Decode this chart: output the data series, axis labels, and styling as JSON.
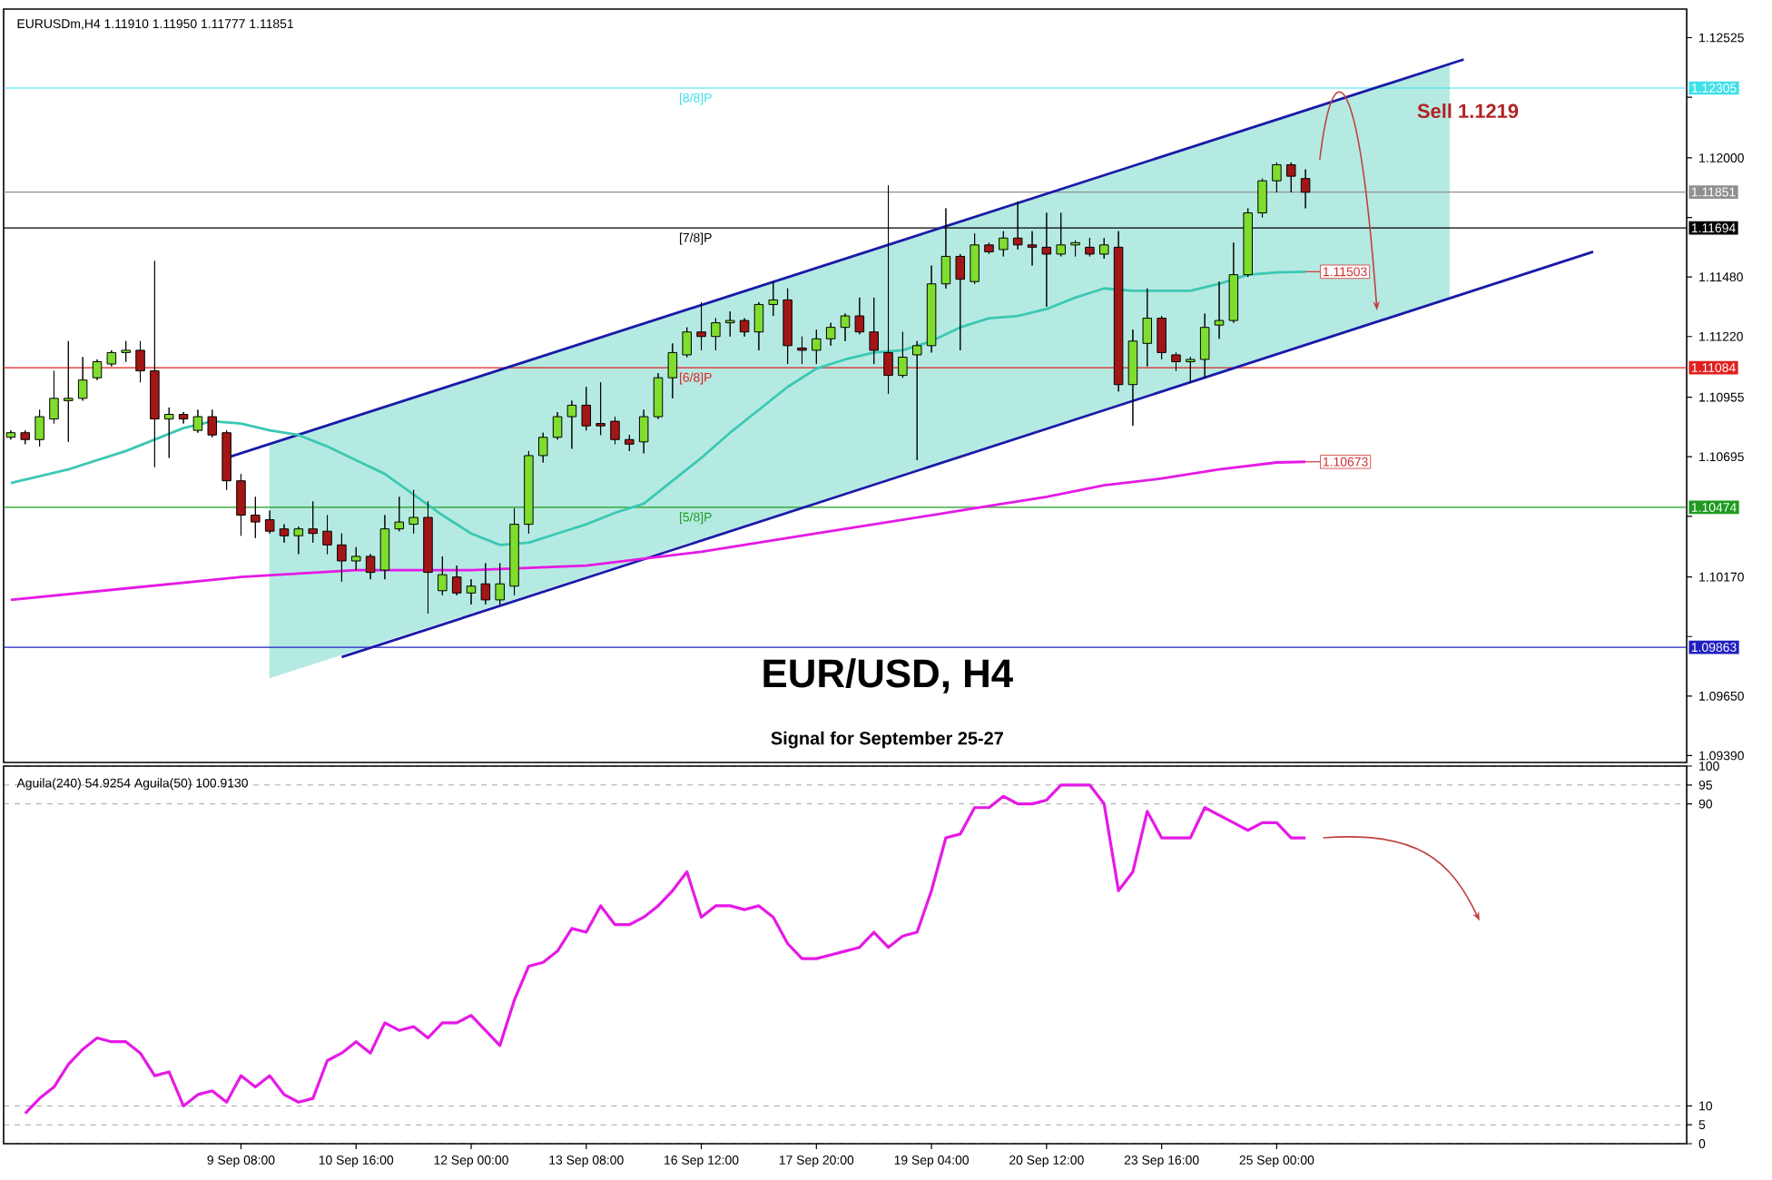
{
  "chart_data": [
    {
      "type": "candlestick",
      "title": "EUR/USD, H4",
      "subtitle": "Signal for September 25-27",
      "annotations": [
        "EURUSDm,H4 1.11910 1.11950 1.11777 1.11851",
        "Sell 1.1219",
        {
          "text": "[8/8]P",
          "y": 1.12305
        },
        {
          "text": "[7/8]P",
          "y": 1.11694
        },
        {
          "text": "[6/8]P",
          "y": 1.11084
        },
        {
          "text": "[5/8]P",
          "y": 1.10474
        }
      ],
      "categories": [
        null,
        null,
        null,
        null,
        null,
        null,
        null,
        null,
        null,
        null,
        null,
        null,
        null,
        null,
        null,
        null,
        null,
        null,
        null,
        null,
        null,
        null,
        null,
        null,
        null,
        null,
        null,
        null,
        null,
        null,
        null,
        null,
        null,
        null,
        null,
        null,
        null,
        null,
        null,
        null,
        null,
        null,
        null,
        null,
        null,
        null,
        null,
        null,
        null,
        null,
        null,
        null,
        null,
        null,
        null,
        null,
        null,
        null,
        null,
        null,
        null,
        null,
        null,
        null,
        null,
        null,
        null,
        null,
        null,
        null,
        null,
        null,
        null,
        null,
        null,
        null,
        null,
        null,
        null,
        null,
        null,
        null,
        null,
        null,
        null,
        null,
        null,
        null,
        null,
        null,
        null,
        null,
        null,
        null,
        null,
        null,
        null,
        null,
        null,
        null,
        null,
        null,
        null,
        null,
        null,
        null,
        null,
        null,
        null,
        null,
        null,
        null,
        null,
        null,
        null,
        null,
        null
      ],
      "ohlc": [
        [
          1.1078,
          1.1081,
          1.1077,
          1.108
        ],
        [
          1.108,
          1.1081,
          1.1075,
          1.1077
        ],
        [
          1.1077,
          1.109,
          1.1074,
          1.1087
        ],
        [
          1.1086,
          1.1107,
          1.1084,
          1.1095
        ],
        [
          1.1094,
          1.112,
          1.1076,
          1.1095
        ],
        [
          1.1095,
          1.1113,
          1.1094,
          1.1103
        ],
        [
          1.1104,
          1.1112,
          1.1103,
          1.1111
        ],
        [
          1.111,
          1.1116,
          1.1109,
          1.1115
        ],
        [
          1.1115,
          1.112,
          1.1111,
          1.1116
        ],
        [
          1.1116,
          1.112,
          1.1102,
          1.1107
        ],
        [
          1.1107,
          1.1155,
          1.1065,
          1.1086
        ],
        [
          1.1086,
          1.1091,
          1.1069,
          1.1088
        ],
        [
          1.1088,
          1.1089,
          1.1084,
          1.1086
        ],
        [
          1.1081,
          1.109,
          1.108,
          1.1087
        ],
        [
          1.1087,
          1.109,
          1.1078,
          1.1079
        ],
        [
          1.108,
          1.1081,
          1.1055,
          1.1059
        ],
        [
          1.1059,
          1.1062,
          1.1035,
          1.1044
        ],
        [
          1.1044,
          1.1052,
          1.1034,
          1.1041
        ],
        [
          1.1042,
          1.1046,
          1.1036,
          1.1037
        ],
        [
          1.1038,
          1.104,
          1.1032,
          1.1035
        ],
        [
          1.1035,
          1.1039,
          1.1027,
          1.1038
        ],
        [
          1.1038,
          1.105,
          1.1032,
          1.1036
        ],
        [
          1.1037,
          1.1044,
          1.1027,
          1.1031
        ],
        [
          1.1031,
          1.1036,
          1.1015,
          1.1024
        ],
        [
          1.1024,
          1.103,
          1.102,
          1.1026
        ],
        [
          1.1026,
          1.1027,
          1.1016,
          1.1019
        ],
        [
          1.102,
          1.1044,
          1.1016,
          1.1038
        ],
        [
          1.1038,
          1.1052,
          1.1037,
          1.1041
        ],
        [
          1.104,
          1.1055,
          1.1036,
          1.1043
        ],
        [
          1.1043,
          1.105,
          1.1001,
          1.1019
        ],
        [
          1.1011,
          1.1026,
          1.1009,
          1.1018
        ],
        [
          1.1017,
          1.1022,
          1.1009,
          1.101
        ],
        [
          1.101,
          1.1016,
          1.1005,
          1.1013
        ],
        [
          1.1014,
          1.1023,
          1.1005,
          1.1007
        ],
        [
          1.1007,
          1.1023,
          1.1005,
          1.1014
        ],
        [
          1.1013,
          1.1047,
          1.1009,
          1.104
        ],
        [
          1.104,
          1.1072,
          1.1036,
          1.107
        ],
        [
          1.107,
          1.108,
          1.1067,
          1.1078
        ],
        [
          1.1078,
          1.1089,
          1.1077,
          1.1087
        ],
        [
          1.1087,
          1.1094,
          1.1073,
          1.1092
        ],
        [
          1.1092,
          1.11,
          1.1081,
          1.1083
        ],
        [
          1.1084,
          1.1102,
          1.1079,
          1.1083
        ],
        [
          1.1085,
          1.1087,
          1.1075,
          1.1077
        ],
        [
          1.1077,
          1.1079,
          1.1072,
          1.1075
        ],
        [
          1.1076,
          1.109,
          1.1071,
          1.1087
        ],
        [
          1.1087,
          1.1106,
          1.1086,
          1.1104
        ],
        [
          1.1104,
          1.1119,
          1.1095,
          1.1115
        ],
        [
          1.1114,
          1.1126,
          1.1113,
          1.1124
        ],
        [
          1.1124,
          1.1137,
          1.1116,
          1.1122
        ],
        [
          1.1122,
          1.113,
          1.1116,
          1.1128
        ],
        [
          1.1128,
          1.1133,
          1.1122,
          1.1129
        ],
        [
          1.1129,
          1.113,
          1.1122,
          1.1124
        ],
        [
          1.1124,
          1.1137,
          1.1116,
          1.1136
        ],
        [
          1.1136,
          1.1146,
          1.1131,
          1.1138
        ],
        [
          1.1138,
          1.1143,
          1.111,
          1.1118
        ],
        [
          1.1117,
          1.1122,
          1.111,
          1.1116
        ],
        [
          1.1116,
          1.1125,
          1.111,
          1.1121
        ],
        [
          1.1121,
          1.1128,
          1.1118,
          1.1126
        ],
        [
          1.1126,
          1.1132,
          1.112,
          1.1131
        ],
        [
          1.1131,
          1.1139,
          1.1123,
          1.1124
        ],
        [
          1.1124,
          1.1139,
          1.111,
          1.1116
        ],
        [
          1.1115,
          1.1188,
          1.1097,
          1.1105
        ],
        [
          1.1105,
          1.1124,
          1.1104,
          1.1113
        ],
        [
          1.1114,
          1.112,
          1.1068,
          1.1118
        ],
        [
          1.1118,
          1.1153,
          1.1115,
          1.1145
        ],
        [
          1.1145,
          1.1178,
          1.1143,
          1.1157
        ],
        [
          1.1157,
          1.1158,
          1.1116,
          1.1147
        ],
        [
          1.1146,
          1.1167,
          1.1145,
          1.1162
        ],
        [
          1.1162,
          1.1163,
          1.1158,
          1.1159
        ],
        [
          1.116,
          1.1168,
          1.1157,
          1.1165
        ],
        [
          1.1165,
          1.1181,
          1.116,
          1.1162
        ],
        [
          1.1162,
          1.1168,
          1.1153,
          1.1161
        ],
        [
          1.1161,
          1.1176,
          1.1135,
          1.1158
        ],
        [
          1.1158,
          1.1176,
          1.1157,
          1.1162
        ],
        [
          1.1162,
          1.1164,
          1.1157,
          1.1163
        ],
        [
          1.1161,
          1.1165,
          1.1157,
          1.1158
        ],
        [
          1.1158,
          1.1165,
          1.1156,
          1.1162
        ],
        [
          1.1161,
          1.1168,
          1.1098,
          1.1101
        ],
        [
          1.1101,
          1.1125,
          1.1083,
          1.112
        ],
        [
          1.1119,
          1.1143,
          1.1109,
          1.113
        ],
        [
          1.113,
          1.1131,
          1.1112,
          1.1115
        ],
        [
          1.1114,
          1.1115,
          1.1107,
          1.1111
        ],
        [
          1.1111,
          1.1113,
          1.1102,
          1.1112
        ],
        [
          1.1112,
          1.1132,
          1.1104,
          1.1126
        ],
        [
          1.1127,
          1.1146,
          1.1121,
          1.1129
        ],
        [
          1.1129,
          1.1163,
          1.1128,
          1.1149
        ],
        [
          1.1149,
          1.1178,
          1.1148,
          1.1176
        ],
        [
          1.1176,
          1.1191,
          1.1174,
          1.119
        ],
        [
          1.119,
          1.1198,
          1.1185,
          1.1197
        ],
        [
          1.1197,
          1.1198,
          1.1185,
          1.1192
        ],
        [
          1.1191,
          1.1195,
          1.1178,
          1.1185
        ],
        null,
        null,
        null,
        null,
        null,
        null,
        null,
        null,
        null,
        null,
        null,
        null,
        null,
        null,
        null,
        null,
        null,
        null,
        null,
        null,
        null,
        null,
        null,
        null,
        null,
        null
      ],
      "colors": [
        "#7fdd2e",
        "#a31616",
        "#7fdd2e",
        "#7fdd2e",
        "#7fdd2e",
        "#7fdd2e",
        "#7fdd2e",
        "#7fdd2e",
        "#7fdd2e",
        "#a31616",
        "#a31616",
        "#7fdd2e",
        "#a31616",
        "#7fdd2e",
        "#a31616",
        "#a31616",
        "#a31616",
        "#a31616",
        "#a31616",
        "#a31616",
        "#7fdd2e",
        "#a31616",
        "#a31616",
        "#a31616",
        "#7fdd2e",
        "#a31616",
        "#7fdd2e",
        "#7fdd2e",
        "#7fdd2e",
        "#a31616",
        "#7fdd2e",
        "#a31616",
        "#7fdd2e",
        "#a31616",
        "#7fdd2e",
        "#7fdd2e",
        "#7fdd2e",
        "#7fdd2e",
        "#7fdd2e",
        "#7fdd2e",
        "#a31616",
        "#a31616",
        "#a31616",
        "#a31616",
        "#7fdd2e",
        "#7fdd2e",
        "#7fdd2e",
        "#7fdd2e",
        "#a31616",
        "#7fdd2e",
        "#7fdd2e",
        "#a31616",
        "#7fdd2e",
        "#7fdd2e",
        "#a31616",
        "#a31616",
        "#7fdd2e",
        "#7fdd2e",
        "#7fdd2e",
        "#a31616",
        "#a31616",
        "#a31616",
        "#7fdd2e",
        "#7fdd2e",
        "#7fdd2e",
        "#7fdd2e",
        "#a31616",
        "#7fdd2e",
        "#a31616",
        "#7fdd2e",
        "#a31616",
        "#a31616",
        "#a31616",
        "#7fdd2e",
        "#7fdd2e",
        "#a31616",
        "#7fdd2e",
        "#a31616",
        "#7fdd2e",
        "#7fdd2e",
        "#a31616",
        "#a31616",
        "#7fdd2e",
        "#7fdd2e",
        "#7fdd2e",
        "#7fdd2e",
        "#7fdd2e",
        "#7fdd2e",
        "#7fdd2e",
        "#a31616",
        "#a31616",
        null,
        null,
        null,
        null,
        null,
        null,
        null,
        null,
        null,
        null,
        null,
        null,
        null,
        null,
        null,
        null,
        null,
        null,
        null,
        null,
        null,
        null,
        null,
        null,
        null,
        null
      ],
      "series": [
        {
          "type": "line",
          "color": "#1a1aa8",
          "values": [
            null,
            null,
            null,
            null,
            null,
            null,
            null,
            null,
            null,
            null,
            null,
            null,
            null,
            null,
            null,
            1.1069,
            null,
            null,
            null,
            null,
            null,
            null,
            null,
            null,
            null,
            null,
            null,
            null,
            null,
            null,
            null,
            null,
            null,
            null,
            null,
            null,
            null,
            null,
            null,
            null,
            null,
            null,
            null,
            null,
            null,
            null,
            null,
            null,
            null,
            null,
            null,
            null,
            null,
            null,
            null,
            null,
            null,
            null,
            null,
            null,
            null,
            null,
            null,
            null,
            null,
            null,
            null,
            null,
            null,
            null,
            null,
            null,
            null,
            null,
            null,
            null,
            null,
            null,
            null,
            null,
            null,
            null,
            null,
            null,
            null,
            null,
            null,
            null,
            null,
            null,
            null,
            null,
            null,
            null,
            null,
            null,
            null,
            null,
            null,
            null,
            null,
            1.1243,
            null,
            null,
            null,
            null,
            null,
            null,
            null,
            null,
            null,
            null,
            null,
            null,
            null,
            null,
            null
          ]
        },
        {
          "type": "line",
          "color": "#1a1aa8",
          "values": [
            null,
            null,
            null,
            null,
            null,
            null,
            null,
            null,
            null,
            null,
            null,
            null,
            null,
            null,
            null,
            null,
            null,
            null,
            null,
            null,
            null,
            null,
            null,
            1.0982,
            null,
            null,
            null,
            null,
            null,
            null,
            null,
            null,
            null,
            null,
            null,
            null,
            null,
            null,
            null,
            null,
            null,
            null,
            null,
            null,
            null,
            null,
            null,
            null,
            null,
            null,
            null,
            null,
            null,
            null,
            null,
            null,
            null,
            null,
            null,
            null,
            null,
            null,
            null,
            null,
            null,
            null,
            null,
            null,
            null,
            null,
            null,
            null,
            null,
            null,
            null,
            null,
            null,
            null,
            null,
            null,
            null,
            null,
            null,
            null,
            null,
            null,
            null,
            null,
            null,
            null,
            null,
            null,
            null,
            null,
            null,
            null,
            null,
            null,
            null,
            null,
            null,
            null,
            null,
            null,
            null,
            null,
            null,
            null,
            null,
            null,
            1.1159,
            null,
            null,
            null,
            null,
            null,
            null
          ]
        },
        {
          "type": "line",
          "color": "#3cc8b4",
          "values": [
            1.1058,
            null,
            null,
            null,
            1.1064,
            null,
            null,
            null,
            1.1072,
            null,
            null,
            null,
            1.1082,
            null,
            1.1085,
            null,
            1.1084,
            null,
            1.1081,
            null,
            1.1079,
            null,
            1.1074,
            null,
            1.1068,
            null,
            1.1062,
            null,
            1.1053,
            null,
            1.1044,
            null,
            1.1036,
            null,
            1.1031,
            null,
            1.1032,
            null,
            1.1036,
            null,
            1.104,
            null,
            1.1045,
            null,
            1.1049,
            null,
            1.1059,
            null,
            1.1069,
            null,
            1.108,
            null,
            1.109,
            null,
            1.11,
            null,
            1.1108,
            null,
            1.1112,
            null,
            1.1115,
            null,
            1.1116,
            null,
            1.112,
            null,
            1.1126,
            null,
            1.113,
            null,
            1.1131,
            null,
            1.1134,
            null,
            1.1139,
            null,
            1.1143,
            null,
            1.1142,
            null,
            1.1142,
            null,
            1.1142,
            null,
            1.1145,
            null,
            1.1149,
            null,
            1.115,
            null,
            1.11503,
            null,
            null,
            null,
            null,
            null,
            null,
            null,
            null,
            null,
            null,
            null,
            null,
            null,
            null,
            null,
            null,
            null,
            null,
            null,
            null,
            null,
            null,
            null,
            null,
            null,
            null
          ],
          "value_labels": [
            null,
            null,
            null,
            null,
            null,
            null,
            null,
            null,
            null,
            null,
            null,
            null,
            null,
            null,
            null,
            null,
            null,
            null,
            null,
            null,
            null,
            null,
            null,
            null,
            null,
            null,
            null,
            null,
            null,
            null,
            null,
            null,
            null,
            null,
            null,
            null,
            null,
            null,
            null,
            null,
            null,
            null,
            null,
            null,
            null,
            null,
            null,
            null,
            null,
            null,
            null,
            null,
            null,
            null,
            null,
            null,
            null,
            null,
            null,
            null,
            null,
            null,
            null,
            null,
            null,
            null,
            null,
            null,
            null,
            null,
            null,
            null,
            null,
            null,
            null,
            null,
            null,
            null,
            null,
            null,
            null,
            null,
            null,
            null,
            null,
            null,
            null,
            null,
            null,
            null,
            "1.11503",
            null,
            null,
            null,
            null,
            null,
            null,
            null,
            null,
            null,
            null,
            null,
            null,
            null,
            null,
            null,
            null,
            null,
            null,
            null,
            null,
            null,
            null,
            null,
            null,
            null,
            null
          ],
          "upper": [
            null,
            null,
            null,
            null,
            null,
            null,
            null,
            null,
            null,
            null,
            null,
            null,
            null,
            null,
            null,
            null,
            null,
            null,
            1.1075,
            null,
            null,
            null,
            null,
            null,
            null,
            null,
            null,
            null,
            null,
            null,
            null,
            null,
            null,
            null,
            null,
            null,
            null,
            null,
            null,
            null,
            null,
            null,
            null,
            null,
            null,
            null,
            null,
            null,
            null,
            null,
            null,
            null,
            null,
            null,
            null,
            null,
            null,
            null,
            null,
            null,
            null,
            null,
            null,
            null,
            null,
            null,
            null,
            null,
            null,
            null,
            null,
            null,
            null,
            null,
            null,
            null,
            null,
            null,
            null,
            null,
            null,
            null,
            null,
            null,
            null,
            null,
            null,
            null,
            null,
            null,
            null,
            null,
            null,
            null,
            null,
            null,
            null,
            null,
            null,
            null,
            1.1241,
            null,
            null,
            null,
            null,
            null,
            null,
            null,
            null,
            null,
            null,
            null,
            null,
            null,
            null,
            null,
            null
          ],
          "lower": [
            null,
            null,
            null,
            null,
            null,
            null,
            null,
            null,
            null,
            null,
            null,
            null,
            null,
            null,
            null,
            null,
            null,
            null,
            1.0973,
            null,
            null,
            null,
            null,
            null,
            null,
            null,
            null,
            null,
            null,
            null,
            null,
            null,
            null,
            null,
            null,
            null,
            null,
            null,
            null,
            null,
            null,
            null,
            null,
            null,
            null,
            null,
            null,
            null,
            null,
            null,
            null,
            null,
            null,
            null,
            null,
            null,
            null,
            null,
            null,
            null,
            null,
            null,
            null,
            null,
            null,
            null,
            null,
            null,
            null,
            null,
            null,
            null,
            null,
            null,
            null,
            null,
            null,
            null,
            null,
            null,
            null,
            null,
            null,
            null,
            null,
            null,
            null,
            null,
            null,
            null,
            null,
            null,
            null,
            null,
            null,
            null,
            null,
            null,
            null,
            null,
            1.1139,
            null,
            null,
            null,
            null,
            null,
            null,
            null,
            null,
            null,
            null,
            null,
            null,
            null,
            null,
            null,
            null
          ]
        },
        {
          "type": "line",
          "color": "#e619e6",
          "values": [
            1.1007,
            null,
            null,
            null,
            null,
            null,
            null,
            null,
            1.1012,
            null,
            null,
            null,
            null,
            null,
            null,
            null,
            1.1017,
            null,
            null,
            null,
            null,
            null,
            null,
            null,
            1.102,
            null,
            null,
            null,
            null,
            null,
            null,
            null,
            1.102,
            null,
            null,
            null,
            null,
            null,
            null,
            null,
            1.1022,
            null,
            null,
            null,
            null,
            null,
            null,
            null,
            1.1028,
            null,
            null,
            null,
            null,
            null,
            null,
            null,
            1.1036,
            null,
            null,
            null,
            1.104,
            null,
            null,
            null,
            1.1044,
            null,
            null,
            null,
            1.1048,
            null,
            null,
            null,
            1.1052,
            null,
            null,
            null,
            1.1057,
            null,
            null,
            null,
            1.106,
            null,
            null,
            null,
            1.1064,
            null,
            null,
            null,
            1.1067,
            null,
            1.10673,
            null,
            null,
            null,
            null,
            null,
            null,
            null,
            null,
            null,
            null,
            null,
            null,
            null,
            null,
            null,
            null,
            null,
            null,
            null,
            null,
            null,
            null,
            null,
            null,
            null,
            null
          ],
          "value_labels": [
            null,
            null,
            null,
            null,
            null,
            null,
            null,
            null,
            null,
            null,
            null,
            null,
            null,
            null,
            null,
            null,
            null,
            null,
            null,
            null,
            null,
            null,
            null,
            null,
            null,
            null,
            null,
            null,
            null,
            null,
            null,
            null,
            null,
            null,
            null,
            null,
            null,
            null,
            null,
            null,
            null,
            null,
            null,
            null,
            null,
            null,
            null,
            null,
            null,
            null,
            null,
            null,
            null,
            null,
            null,
            null,
            null,
            null,
            null,
            null,
            null,
            null,
            null,
            null,
            null,
            null,
            null,
            null,
            null,
            null,
            null,
            null,
            null,
            null,
            null,
            null,
            null,
            null,
            null,
            null,
            null,
            null,
            null,
            null,
            null,
            null,
            null,
            null,
            null,
            null,
            "1.10673",
            null,
            null,
            null,
            null,
            null,
            null,
            null,
            null,
            null,
            null,
            null,
            null,
            null,
            null,
            null,
            null,
            null,
            null,
            null,
            null,
            null,
            null,
            null,
            null,
            null,
            null
          ]
        }
      ],
      "ref_lines": [
        {
          "axis": "y",
          "value": 1.12305,
          "label": "1.12305",
          "color": "#40e0e8"
        },
        {
          "axis": "y",
          "value": 1.11851,
          "label": "1.11851",
          "color": "#909090"
        },
        {
          "axis": "y",
          "value": 1.11694,
          "label": "1.11694",
          "color": "#000000"
        },
        {
          "axis": "y",
          "value": 1.11084,
          "label": "1.11084",
          "color": "#e02020"
        },
        {
          "axis": "y",
          "value": 1.10474,
          "label": "1.10474",
          "color": "#1f9a1f"
        },
        {
          "axis": "y",
          "value": 1.09863,
          "label": "1.09863",
          "color": "#2020c0"
        }
      ],
      "ylim": [
        1.0936,
        1.1265
      ],
      "yticks": [
        1.12525,
        {
          "value": 1.12265,
          "label": null
        },
        {
          "value": 1.12,
          "label": "1.12000"
        },
        {
          "value": 1.1174,
          "label": null
        },
        {
          "value": 1.1148,
          "label": "1.11480"
        },
        {
          "value": 1.1122,
          "label": "1.11220"
        },
        1.10955,
        1.10695,
        {
          "value": 1.10435,
          "label": null
        },
        {
          "value": 1.1017,
          "label": "1.10170"
        },
        {
          "value": 1.0991,
          "label": null
        },
        {
          "value": 1.0965,
          "label": "1.09650"
        },
        {
          "value": 1.0939,
          "label": "1.09390"
        }
      ],
      "tick_labels": "y"
    },
    {
      "type": "line",
      "annotations": [
        "Aguila(240) 54.9254 Aguila(50) 100.9130"
      ],
      "categories": [
        null,
        null,
        null,
        null,
        null,
        null,
        null,
        null,
        null,
        null,
        null,
        null,
        null,
        null,
        null,
        null,
        "9 Sep 08:00",
        null,
        null,
        null,
        null,
        null,
        null,
        null,
        "10 Sep 16:00",
        null,
        null,
        null,
        null,
        null,
        null,
        null,
        "12 Sep 00:00",
        null,
        null,
        null,
        null,
        null,
        null,
        null,
        "13 Sep 08:00",
        null,
        null,
        null,
        null,
        null,
        null,
        null,
        "16 Sep 12:00",
        null,
        null,
        null,
        null,
        null,
        null,
        null,
        "17 Sep 20:00",
        null,
        null,
        null,
        null,
        null,
        null,
        null,
        "19 Sep 04:00",
        null,
        null,
        null,
        null,
        null,
        null,
        null,
        "20 Sep 12:00",
        null,
        null,
        null,
        null,
        null,
        null,
        null,
        "23 Sep 16:00",
        null,
        null,
        null,
        null,
        null,
        null,
        null,
        "25 Sep 00:00",
        null,
        null,
        null,
        null,
        null,
        null,
        null,
        null,
        null,
        null,
        null,
        null,
        null,
        null,
        null,
        null,
        null,
        null,
        null,
        null,
        null,
        null,
        null,
        null,
        null,
        null,
        null,
        null
      ],
      "values": [
        null,
        8,
        12,
        15,
        21,
        25,
        28,
        27,
        27,
        24,
        18,
        19,
        10,
        13,
        14,
        11,
        18,
        15,
        18,
        13,
        11,
        12,
        22,
        24,
        27,
        24,
        32,
        30,
        31,
        28,
        32,
        32,
        34,
        30,
        26,
        38,
        47,
        48,
        51,
        57,
        56,
        63,
        58,
        58,
        60,
        63,
        67,
        72,
        60,
        63,
        63,
        62,
        63,
        60,
        53,
        49,
        49,
        50,
        51,
        52,
        56,
        52,
        55,
        56,
        67,
        81,
        82,
        89,
        89,
        92,
        90,
        90,
        91,
        95,
        95,
        95,
        90,
        67,
        72,
        88,
        81,
        81,
        81,
        89,
        87,
        85,
        83,
        85,
        85,
        81,
        81,
        null,
        null,
        null,
        null,
        null,
        null,
        null,
        null,
        null,
        null,
        null,
        null,
        null,
        null,
        null,
        null,
        null,
        null,
        null,
        null,
        null,
        null,
        null,
        null,
        null,
        null
      ],
      "color": "#e619e6",
      "ylim": [
        0,
        100
      ],
      "yticks": [
        0,
        5,
        10,
        90,
        95,
        100
      ],
      "grid": "y"
    }
  ]
}
